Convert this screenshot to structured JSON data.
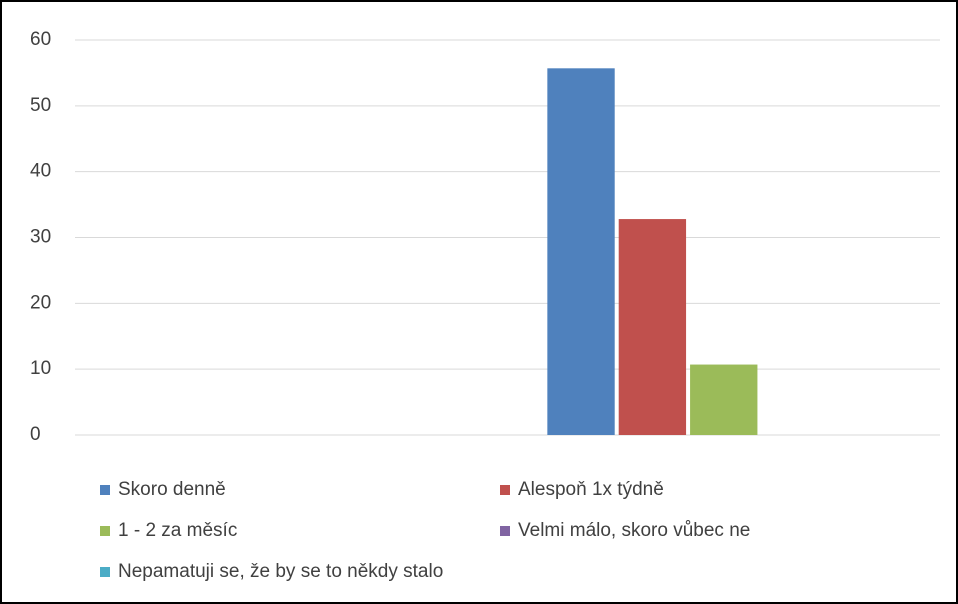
{
  "chart_data": {
    "type": "bar",
    "categories": [
      null,
      null
    ],
    "series": [
      {
        "name": "Skoro denně",
        "color": "#4f81bd",
        "values": [
          null,
          55.7
        ]
      },
      {
        "name": "Alespoň 1x týdně",
        "color": "#c0504d",
        "values": [
          null,
          32.8
        ]
      },
      {
        "name": "1 - 2 za měsíc",
        "color": "#9bbb59",
        "values": [
          null,
          10.7
        ]
      },
      {
        "name": "Velmi málo, skoro vůbec ne",
        "color": "#8064a2",
        "values": [
          null,
          0
        ]
      },
      {
        "name": "Nepamatuji se, že by se to někdy stalo",
        "color": "#4bacc6",
        "values": [
          null,
          0
        ]
      }
    ],
    "ylim": [
      0,
      60
    ],
    "yticks": [
      0,
      10,
      20,
      30,
      40,
      50,
      60
    ],
    "grid": true,
    "legend": "bottom"
  }
}
